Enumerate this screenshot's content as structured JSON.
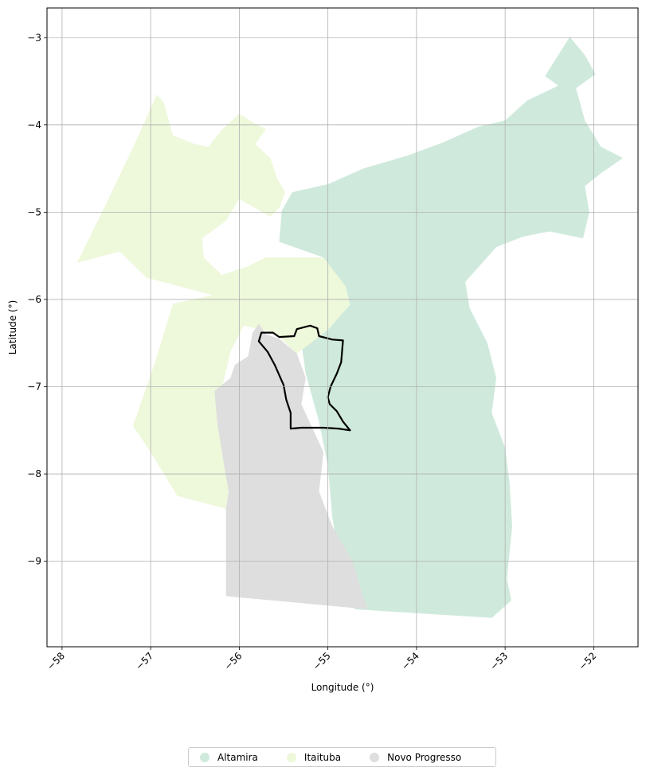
{
  "chart_data": {
    "type": "map",
    "xlabel": "Longitude (°)",
    "ylabel": "Latitude (°)",
    "xlim": [
      -58.17,
      -51.5
    ],
    "ylim": [
      -9.98,
      -2.66
    ],
    "x_ticks": [
      -58,
      -57,
      -56,
      -55,
      -54,
      -53,
      -52
    ],
    "x_tick_labels": [
      "−58",
      "−57",
      "−56",
      "−55",
      "−54",
      "−53",
      "−52"
    ],
    "y_ticks": [
      -3,
      -4,
      -5,
      -6,
      -7,
      -8,
      -9
    ],
    "y_tick_labels": [
      "−3",
      "−4",
      "−5",
      "−6",
      "−7",
      "−8",
      "−9"
    ],
    "grid": true,
    "legend_position": "bottom-center",
    "regions": [
      {
        "name": "Altamira",
        "color": "#cfeadc",
        "polygon": [
          [
            -54.75,
            -6.06
          ],
          [
            -55.05,
            -5.52
          ],
          [
            -55.55,
            -5.34
          ],
          [
            -55.52,
            -4.98
          ],
          [
            -55.4,
            -4.77
          ],
          [
            -55.0,
            -4.68
          ],
          [
            -54.6,
            -4.5
          ],
          [
            -54.1,
            -4.35
          ],
          [
            -53.7,
            -4.2
          ],
          [
            -53.3,
            -4.02
          ],
          [
            -53.0,
            -3.95
          ],
          [
            -52.75,
            -3.72
          ],
          [
            -52.4,
            -3.55
          ],
          [
            -52.55,
            -3.44
          ],
          [
            -52.4,
            -3.2
          ],
          [
            -52.27,
            -2.99
          ],
          [
            -52.1,
            -3.2
          ],
          [
            -51.98,
            -3.42
          ],
          [
            -52.2,
            -3.58
          ],
          [
            -52.1,
            -3.95
          ],
          [
            -51.92,
            -4.25
          ],
          [
            -51.67,
            -4.38
          ],
          [
            -51.9,
            -4.54
          ],
          [
            -52.1,
            -4.7
          ],
          [
            -52.05,
            -5.0
          ],
          [
            -52.12,
            -5.3
          ],
          [
            -52.5,
            -5.22
          ],
          [
            -52.8,
            -5.28
          ],
          [
            -53.1,
            -5.4
          ],
          [
            -53.45,
            -5.8
          ],
          [
            -53.4,
            -6.1
          ],
          [
            -53.2,
            -6.5
          ],
          [
            -53.1,
            -6.9
          ],
          [
            -53.15,
            -7.3
          ],
          [
            -53.0,
            -7.7
          ],
          [
            -52.95,
            -8.1
          ],
          [
            -52.92,
            -8.6
          ],
          [
            -52.98,
            -9.2
          ],
          [
            -52.93,
            -9.45
          ],
          [
            -53.15,
            -9.65
          ],
          [
            -54.7,
            -9.55
          ],
          [
            -54.85,
            -9.1
          ],
          [
            -54.95,
            -8.5
          ],
          [
            -55.0,
            -7.9
          ],
          [
            -55.1,
            -7.4
          ],
          [
            -55.25,
            -6.85
          ],
          [
            -55.3,
            -6.5
          ],
          [
            -55.0,
            -6.3
          ]
        ]
      },
      {
        "name": "Itaituba",
        "color": "#eef8db",
        "polygon": [
          [
            -57.83,
            -5.58
          ],
          [
            -57.5,
            -4.9
          ],
          [
            -57.15,
            -4.15
          ],
          [
            -56.93,
            -3.65
          ],
          [
            -56.85,
            -3.75
          ],
          [
            -56.75,
            -4.12
          ],
          [
            -56.5,
            -4.22
          ],
          [
            -56.35,
            -4.25
          ],
          [
            -56.2,
            -4.06
          ],
          [
            -56.0,
            -3.87
          ],
          [
            -55.85,
            -3.97
          ],
          [
            -55.7,
            -4.05
          ],
          [
            -55.82,
            -4.22
          ],
          [
            -55.65,
            -4.38
          ],
          [
            -55.57,
            -4.62
          ],
          [
            -55.48,
            -4.77
          ],
          [
            -55.55,
            -4.95
          ],
          [
            -55.65,
            -5.05
          ],
          [
            -56.0,
            -4.85
          ],
          [
            -56.15,
            -5.1
          ],
          [
            -56.42,
            -5.3
          ],
          [
            -56.4,
            -5.52
          ],
          [
            -56.2,
            -5.72
          ],
          [
            -55.9,
            -5.62
          ],
          [
            -55.7,
            -5.52
          ],
          [
            -55.05,
            -5.52
          ],
          [
            -54.8,
            -5.85
          ],
          [
            -54.75,
            -6.06
          ],
          [
            -55.0,
            -6.35
          ],
          [
            -55.35,
            -6.62
          ],
          [
            -55.6,
            -6.38
          ],
          [
            -55.95,
            -6.3
          ],
          [
            -56.1,
            -6.6
          ],
          [
            -56.25,
            -7.25
          ],
          [
            -56.1,
            -8.05
          ],
          [
            -56.15,
            -8.4
          ],
          [
            -56.7,
            -8.25
          ],
          [
            -57.0,
            -7.75
          ],
          [
            -57.2,
            -7.45
          ],
          [
            -56.95,
            -6.72
          ],
          [
            -56.75,
            -6.05
          ],
          [
            -56.3,
            -5.95
          ],
          [
            -57.05,
            -5.75
          ],
          [
            -57.35,
            -5.45
          ]
        ]
      },
      {
        "name": "Novo Progresso",
        "color": "#dedede",
        "polygon": [
          [
            -56.15,
            -9.4
          ],
          [
            -54.55,
            -9.55
          ],
          [
            -54.62,
            -9.35
          ],
          [
            -54.72,
            -9.0
          ],
          [
            -54.95,
            -8.6
          ],
          [
            -55.1,
            -8.2
          ],
          [
            -55.05,
            -7.75
          ],
          [
            -55.3,
            -7.2
          ],
          [
            -55.25,
            -6.9
          ],
          [
            -55.35,
            -6.62
          ],
          [
            -55.55,
            -6.45
          ],
          [
            -55.7,
            -6.4
          ],
          [
            -55.78,
            -6.28
          ],
          [
            -55.85,
            -6.38
          ],
          [
            -55.9,
            -6.65
          ],
          [
            -56.05,
            -6.75
          ],
          [
            -56.1,
            -6.9
          ],
          [
            -56.28,
            -7.05
          ],
          [
            -56.25,
            -7.4
          ],
          [
            -56.18,
            -7.85
          ],
          [
            -56.12,
            -8.2
          ],
          [
            -56.15,
            -8.4
          ]
        ]
      }
    ],
    "outline": {
      "name": "study-area-outline",
      "color": "#000000",
      "polygon": [
        [
          -55.75,
          -6.38
        ],
        [
          -55.62,
          -6.38
        ],
        [
          -55.55,
          -6.43
        ],
        [
          -55.38,
          -6.42
        ],
        [
          -55.35,
          -6.34
        ],
        [
          -55.2,
          -6.3
        ],
        [
          -55.12,
          -6.33
        ],
        [
          -55.1,
          -6.42
        ],
        [
          -54.95,
          -6.46
        ],
        [
          -54.83,
          -6.47
        ],
        [
          -54.85,
          -6.72
        ],
        [
          -54.9,
          -6.85
        ],
        [
          -54.97,
          -7.0
        ],
        [
          -55.0,
          -7.12
        ],
        [
          -54.98,
          -7.2
        ],
        [
          -54.9,
          -7.28
        ],
        [
          -54.83,
          -7.4
        ],
        [
          -54.75,
          -7.5
        ],
        [
          -54.88,
          -7.48
        ],
        [
          -55.05,
          -7.47
        ],
        [
          -55.3,
          -7.47
        ],
        [
          -55.42,
          -7.48
        ],
        [
          -55.42,
          -7.3
        ],
        [
          -55.47,
          -7.15
        ],
        [
          -55.5,
          -6.98
        ],
        [
          -55.6,
          -6.75
        ],
        [
          -55.68,
          -6.6
        ],
        [
          -55.78,
          -6.48
        ]
      ]
    }
  },
  "legend": {
    "items": [
      {
        "label": "Altamira",
        "color": "#cfeadc"
      },
      {
        "label": "Itaituba",
        "color": "#eef8db"
      },
      {
        "label": "Novo Progresso",
        "color": "#dedede"
      }
    ]
  }
}
